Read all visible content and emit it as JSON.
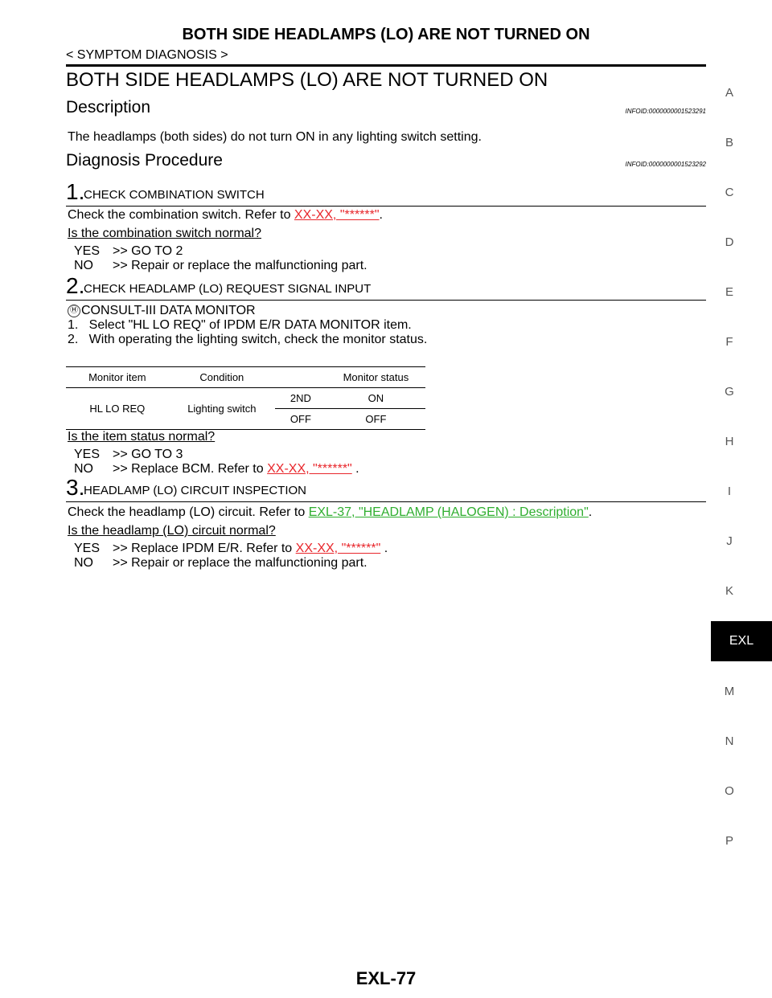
{
  "header": {
    "title": "BOTH SIDE HEADLAMPS (LO) ARE NOT TURNED ON",
    "breadcrumb": "< SYMPTOM DIAGNOSIS >"
  },
  "main_title": "BOTH SIDE HEADLAMPS (LO) ARE NOT TURNED ON",
  "description": {
    "heading": "Description",
    "infoid": "INFOID:0000000001523291",
    "text": "The headlamps (both sides) do not turn ON in any lighting switch setting."
  },
  "procedure": {
    "heading": "Diagnosis Procedure",
    "infoid": "INFOID:0000000001523292"
  },
  "step1": {
    "num": "1.",
    "label": "CHECK COMBINATION SWITCH",
    "text_pre": "Check the combination switch. Refer to ",
    "link": "XX-XX, \"******\"",
    "text_post": ".",
    "question": "Is the combination switch normal?",
    "yes_key": "YES",
    "yes": ">> GO TO 2",
    "no_key": "NO",
    "no": ">> Repair or replace the malfunctioning part."
  },
  "step2": {
    "num": "2.",
    "label": "CHECK HEADLAMP (LO) REQUEST SIGNAL INPUT",
    "icon": "Ⓗ",
    "consult": "CONSULT-III DATA MONITOR",
    "item1": "1.   Select \"HL LO REQ\" of IPDM E/R DATA MONITOR item.",
    "item2": "2.   With operating the lighting switch, check the monitor status.",
    "table": {
      "headers": [
        "Monitor item",
        "Condition",
        "Monitor status"
      ],
      "item": "HL LO REQ",
      "condition": "Lighting switch",
      "rows": [
        [
          "2ND",
          "ON"
        ],
        [
          "OFF",
          "OFF"
        ]
      ]
    },
    "question": "Is the item status normal?",
    "yes_key": "YES",
    "yes": ">> GO TO 3",
    "no_key": "NO",
    "no_pre": ">> Replace BCM. Refer to ",
    "no_link": "XX-XX, \"******\"",
    "no_post": " ."
  },
  "step3": {
    "num": "3.",
    "label": "HEADLAMP (LO) CIRCUIT INSPECTION",
    "text_pre": "Check the headlamp (LO) circuit. Refer to ",
    "link": "EXL-37, \"HEADLAMP (HALOGEN) : Description\"",
    "text_post": ".",
    "question": "Is the headlamp (LO) circuit normal?",
    "yes_key": "YES",
    "yes_pre": ">> Replace IPDM E/R. Refer to ",
    "yes_link": "XX-XX, \"******\"",
    "yes_post": " .",
    "no_key": "NO",
    "no": ">> Repair or replace the malfunctioning part."
  },
  "side_index": [
    "A",
    "B",
    "C",
    "D",
    "E",
    "F",
    "G",
    "H",
    "I",
    "J",
    "K",
    "EXL",
    "M",
    "N",
    "O",
    "P"
  ],
  "active_tab": "EXL",
  "footer": {
    "page": "EXL-77"
  },
  "colors": {
    "link_red": "#e8262b",
    "link_green": "#2fae2f"
  }
}
